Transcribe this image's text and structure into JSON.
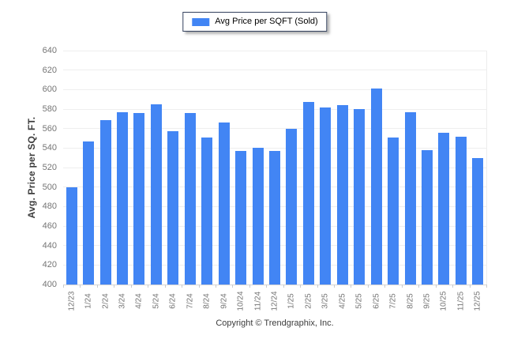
{
  "legend": {
    "label": "Avg Price per SQFT (Sold)",
    "swatch_color": "#4285F4"
  },
  "footer": {
    "copyright": "Copyright © Trendgraphix, Inc."
  },
  "colors": {
    "bar": "#4285F4",
    "gridline": "#eeeeee",
    "axis_line": "#d5d5d5",
    "tick_label": "#757575",
    "legend_border": "#33415e"
  },
  "chart_data": {
    "type": "bar",
    "title": "",
    "xlabel": "",
    "ylabel": "Avg. Price per SQ. FT.",
    "ylim": [
      400,
      640
    ],
    "ytick_step": 20,
    "grid": true,
    "legend_position": "top-center",
    "bar_color": "#4285F4",
    "categories": [
      "12/23",
      "1/24",
      "2/24",
      "3/24",
      "4/24",
      "5/24",
      "6/24",
      "7/24",
      "8/24",
      "9/24",
      "10/24",
      "11/24",
      "12/24",
      "1/25",
      "2/25",
      "3/25",
      "4/25",
      "5/25",
      "6/25",
      "7/25",
      "8/25",
      "9/25",
      "10/25",
      "11/25",
      "12/25"
    ],
    "series": [
      {
        "name": "Avg Price per SQFT (Sold)",
        "values": [
          500,
          547,
          569,
          577,
          576,
          585,
          557,
          576,
          551,
          566,
          537,
          540,
          537,
          560,
          587,
          582,
          584,
          580,
          601,
          551,
          577,
          538,
          556,
          552,
          530
        ]
      }
    ]
  }
}
